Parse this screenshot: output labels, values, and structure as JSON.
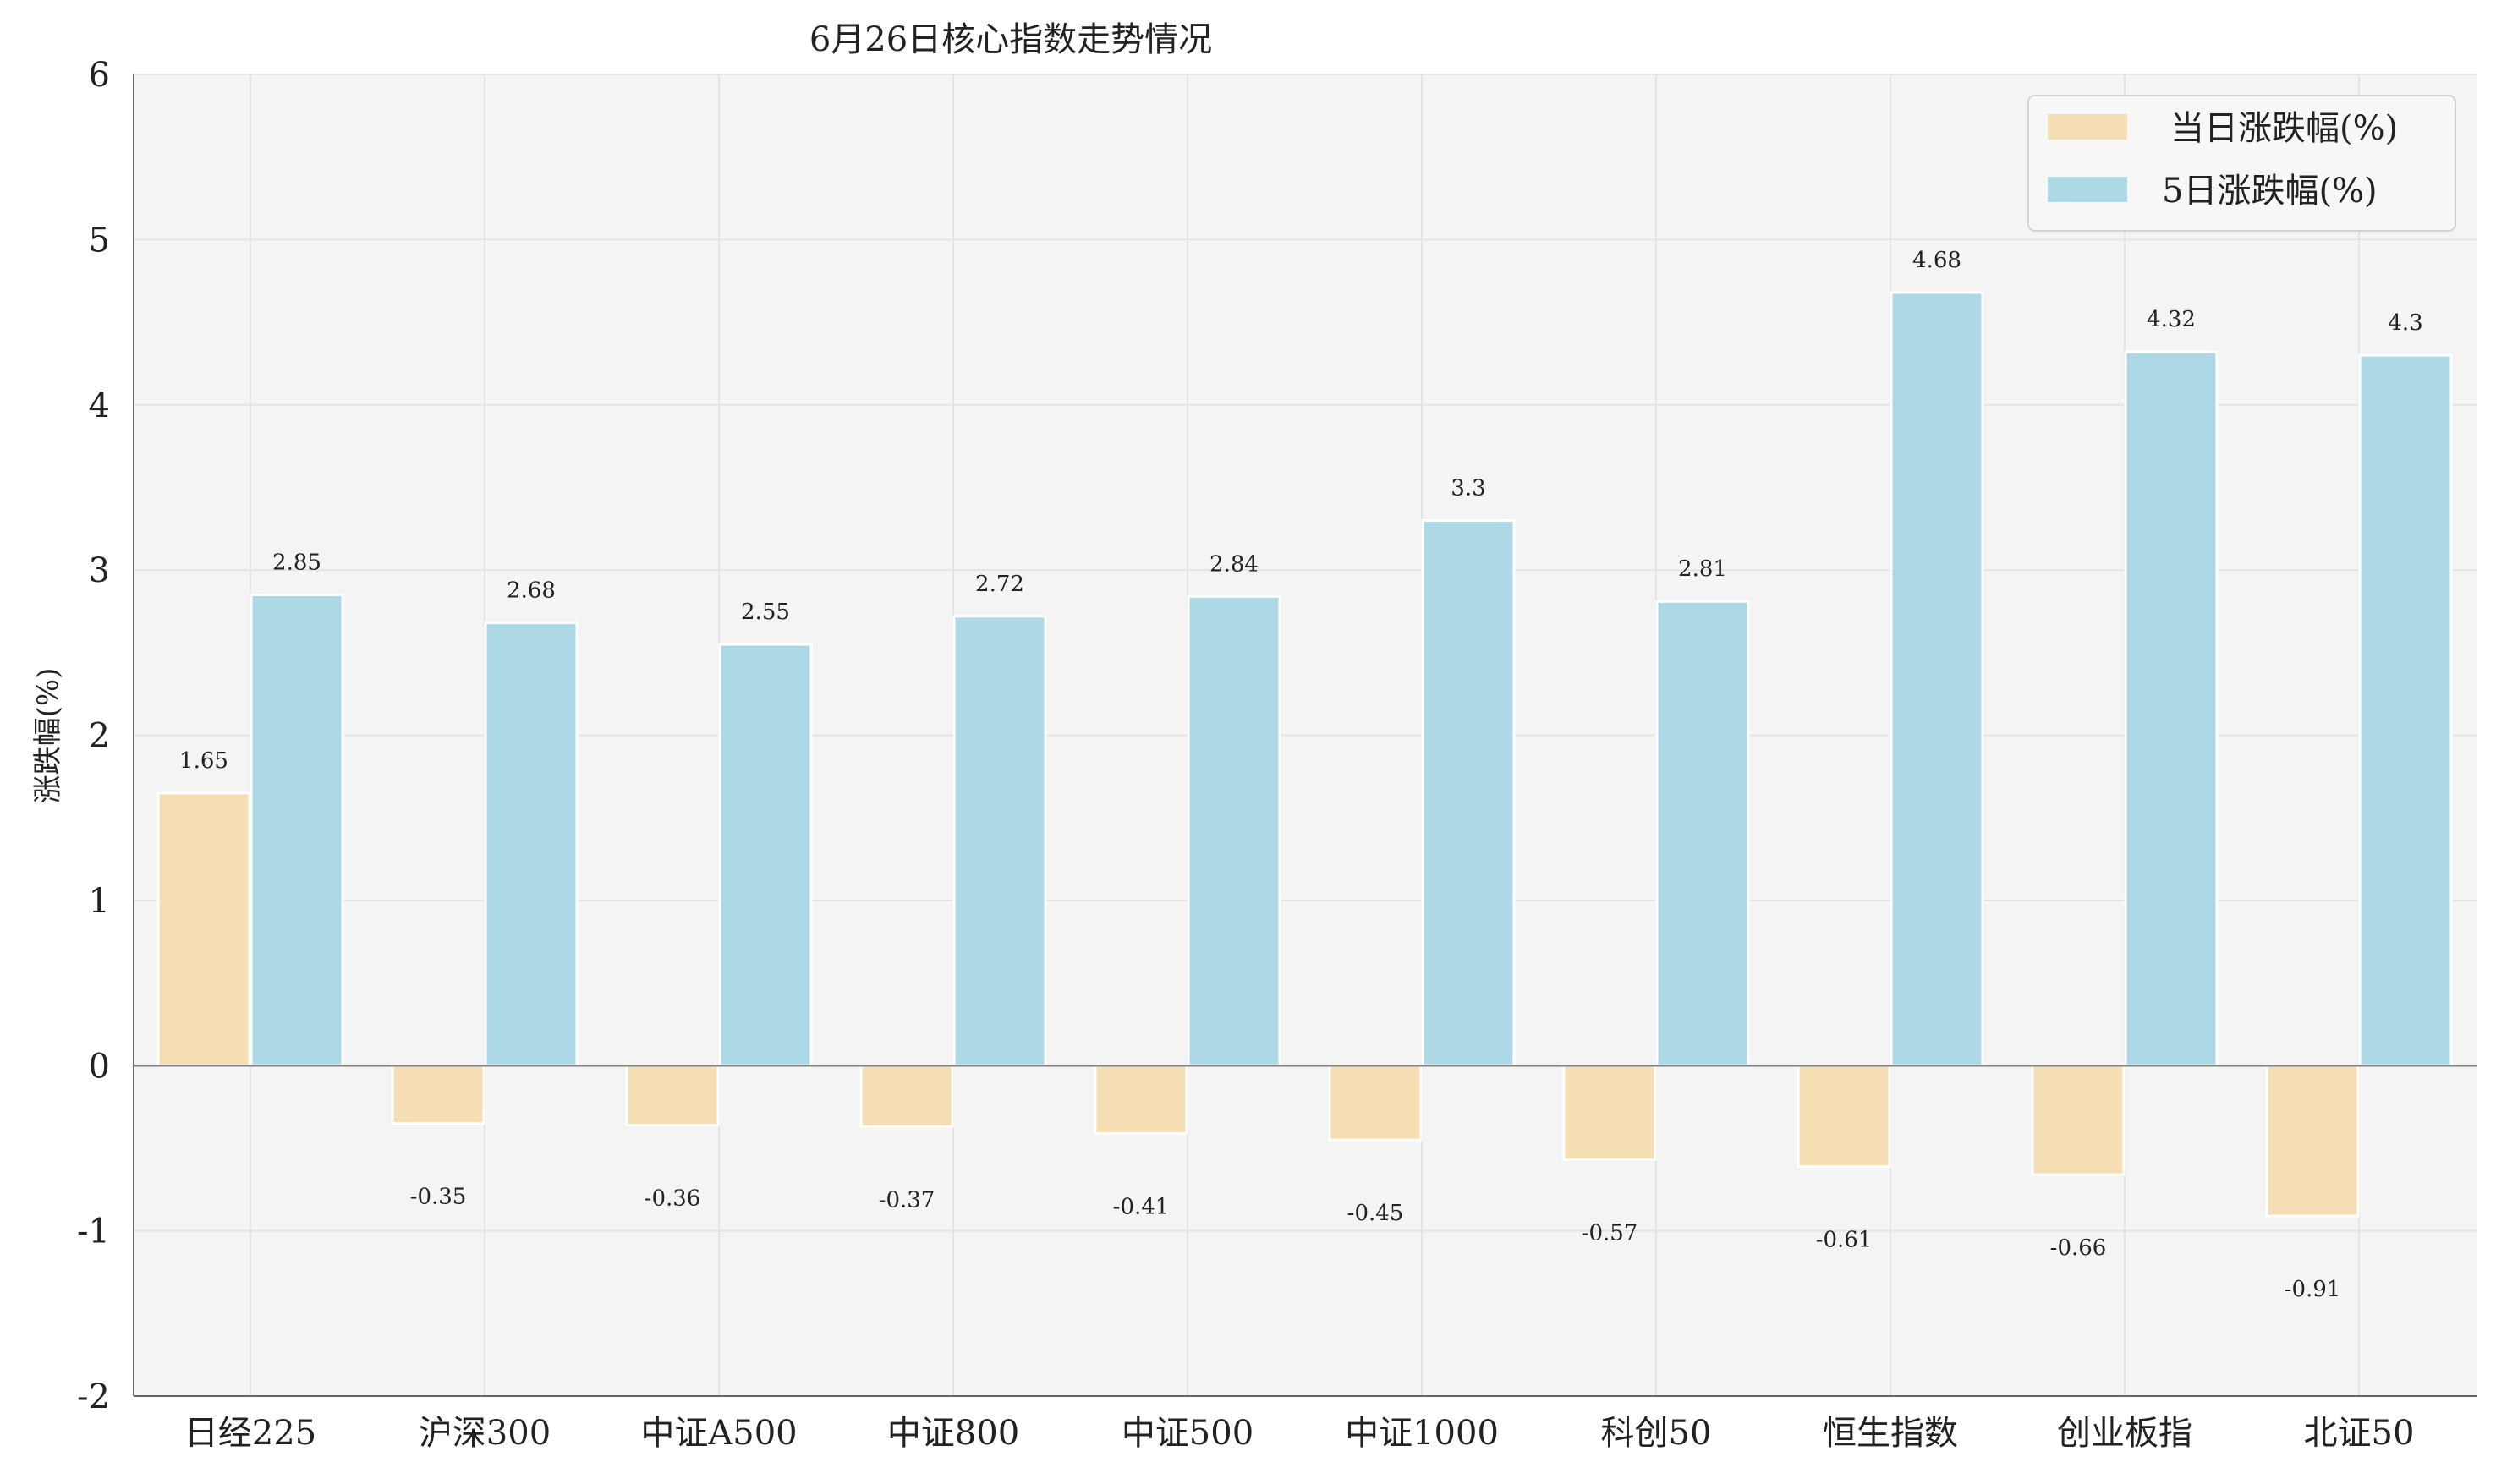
{
  "chart_data": {
    "type": "bar",
    "title": "6月26日核心指数走势情况",
    "xlabel": "",
    "ylabel": "涨跌幅(%)",
    "ylim": [
      -2,
      6
    ],
    "yticks": [
      -2,
      -1,
      0,
      1,
      2,
      3,
      4,
      5,
      6
    ],
    "grid": true,
    "legend_position": "top-right",
    "categories": [
      "日经225",
      "沪深300",
      "中证A500",
      "中证800",
      "中证500",
      "中证1000",
      "科创50",
      "恒生指数",
      "创业板指",
      "北证50"
    ],
    "series": [
      {
        "name": "当日涨跌幅(%)",
        "color": "#f5deb3",
        "values": [
          1.65,
          -0.35,
          -0.36,
          -0.37,
          -0.41,
          -0.45,
          -0.57,
          -0.61,
          -0.66,
          -0.91
        ],
        "labels": [
          "1.65",
          "-0.35",
          "-0.36",
          "-0.37",
          "-0.41",
          "-0.45",
          "-0.57",
          "-0.61",
          "-0.66",
          "-0.91"
        ]
      },
      {
        "name": "5日涨跌幅(%)",
        "color": "#add8e6",
        "values": [
          2.85,
          2.68,
          2.55,
          2.72,
          2.84,
          3.3,
          2.81,
          4.68,
          4.32,
          4.3
        ],
        "labels": [
          "2.85",
          "2.68",
          "2.55",
          "2.72",
          "2.84",
          "3.3",
          "2.81",
          "4.68",
          "4.32",
          "4.3"
        ]
      }
    ],
    "colors": {
      "plot_background": "#f4f4f4",
      "gridline": "#e4e4e4",
      "axis": "#666666",
      "zero_line": "#808080",
      "text": "#222222"
    }
  }
}
